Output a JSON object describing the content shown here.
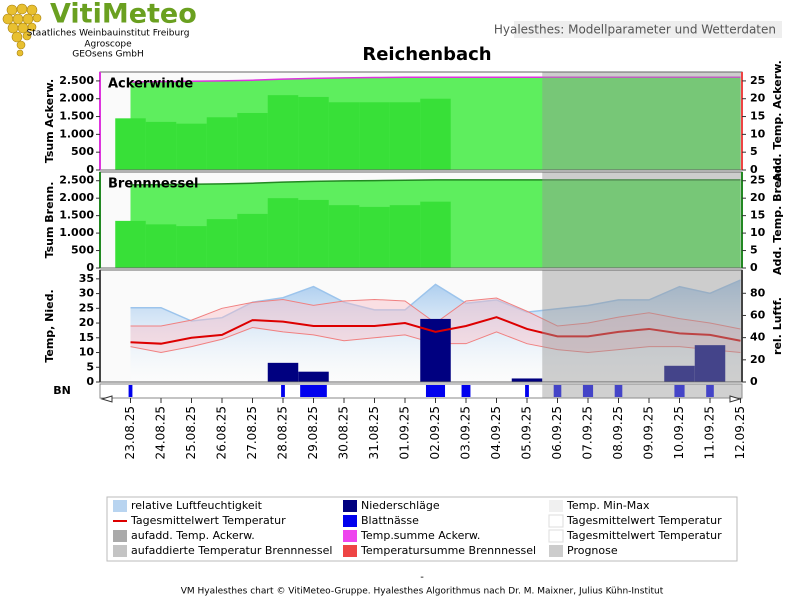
{
  "header": {
    "logo": "VitiMeteo",
    "org1": "Staatliches Weinbauinstitut Freiburg",
    "org2": "Agroscope",
    "org3": "GEOsens GmbH",
    "tab": "Hyalesthes: Modellparameter und Wetterdaten"
  },
  "title": "Reichenbach",
  "forecast_from": "06.09.25",
  "chart_data": [
    {
      "type": "combo",
      "title": "Ackerwinde",
      "ylabel": "Tsum Ackerw.",
      "y2label": "Add. Temp. Ackerw.",
      "ylim": [
        0,
        2750
      ],
      "yticks": [
        0,
        500,
        {
          "value": 1000,
          "label": "1.000"
        },
        {
          "value": 1500,
          "label": "1.500"
        },
        {
          "value": 2000,
          "label": "2.000"
        },
        {
          "value": 2500,
          "label": "2.500"
        }
      ],
      "y2lim": [
        0,
        27.5
      ],
      "y2ticks": [
        0,
        5,
        10,
        15,
        20,
        25
      ],
      "series": [
        {
          "name": "Temp.summe Ackerw.",
          "type": "area",
          "color": "#dd33dd",
          "fill": "#5eee5e",
          "values": [
            2470,
            2480,
            2490,
            2500,
            2520,
            2550,
            2570,
            2585,
            2595,
            2600,
            2605,
            2605,
            2605,
            2605,
            2605,
            2605,
            2605,
            2605,
            2605,
            2605,
            2605
          ]
        },
        {
          "name": "aufadd. Temp. Ackerw.",
          "type": "bar",
          "axis": "y2",
          "color": "#38e038",
          "values": [
            14.5,
            13.5,
            13,
            14.8,
            16,
            21,
            20.5,
            19,
            19,
            19,
            20,
            null,
            null,
            null,
            null,
            null,
            null,
            null,
            null,
            null,
            null
          ]
        }
      ]
    },
    {
      "type": "combo",
      "title": "Brennnessel",
      "ylabel": "Tsum Brenn.",
      "y2label": "Add. Temp. Brenn",
      "ylim": [
        0,
        2750
      ],
      "yticks": [
        0,
        500,
        {
          "value": 1000,
          "label": "1.000"
        },
        {
          "value": 1500,
          "label": "1.500"
        },
        {
          "value": 2000,
          "label": "2.000"
        },
        {
          "value": 2500,
          "label": "2.500"
        }
      ],
      "y2lim": [
        0,
        27.5
      ],
      "y2ticks": [
        0,
        5,
        10,
        15,
        20,
        25
      ],
      "series": [
        {
          "name": "Temperatursumme Brennnessel",
          "type": "area",
          "color": "#228822",
          "fill": "#5eee5e",
          "values": [
            2380,
            2390,
            2400,
            2410,
            2430,
            2460,
            2480,
            2495,
            2505,
            2515,
            2525,
            2525,
            2525,
            2525,
            2525,
            2525,
            2525,
            2525,
            2525,
            2525,
            2525
          ]
        },
        {
          "name": "aufaddierte Temperatur Brennnessel",
          "type": "bar",
          "axis": "y2",
          "color": "#38e038",
          "values": [
            13.5,
            12.5,
            12,
            14,
            15.5,
            20,
            19.5,
            18,
            17.5,
            18,
            19,
            null,
            null,
            null,
            null,
            null,
            null,
            null,
            null,
            null,
            null
          ]
        }
      ]
    },
    {
      "type": "combo",
      "ylabel": "Temp, Nied.",
      "y2label": "rel. Luftf.",
      "ylim": [
        0,
        38
      ],
      "yticks": [
        0,
        5,
        10,
        15,
        20,
        25,
        30,
        35
      ],
      "y2lim": [
        0,
        101
      ],
      "y2ticks": [
        0,
        20,
        40,
        60,
        80
      ],
      "series": [
        {
          "name": "relative Luftfeuchtigkeit",
          "type": "area",
          "axis": "y2",
          "color": "#9cc4ec",
          "fill": "url(#hum)",
          "values": [
            67,
            67,
            55,
            58,
            72,
            76,
            86,
            72,
            65,
            65,
            88,
            71,
            74,
            63,
            66,
            69,
            74,
            74,
            86,
            80,
            92
          ]
        },
        {
          "name": "Temp. Min-Max",
          "type": "band",
          "color": "#f08080",
          "fill": "rgba(250,190,200,0.45)",
          "high": [
            19,
            19,
            21,
            25,
            27,
            28,
            26,
            27.5,
            28,
            27.5,
            20,
            27.5,
            28.5,
            24,
            19,
            20,
            22,
            23.5,
            21.5,
            20,
            18
          ],
          "low": [
            12,
            10,
            12,
            14.5,
            18.5,
            17,
            16,
            14,
            15,
            16,
            13,
            13,
            17,
            13,
            11,
            10,
            11,
            12,
            12,
            11,
            10
          ]
        },
        {
          "name": "Niederschläge",
          "type": "bar",
          "color": "#000080",
          "values": [
            0,
            0,
            0,
            0,
            0,
            6.5,
            3.5,
            0,
            0,
            0,
            21.4,
            0,
            0,
            1.2,
            0,
            0,
            0,
            0,
            5.5,
            12.5,
            0
          ]
        },
        {
          "name": "Tagesmittelwert Temperatur",
          "type": "line",
          "color": "#dd0000",
          "values": [
            13.5,
            13,
            15,
            16,
            21,
            20.5,
            19,
            19,
            19,
            20,
            17,
            19,
            22,
            18,
            15.5,
            15.5,
            17,
            18,
            16.5,
            16,
            14
          ]
        }
      ]
    },
    {
      "type": "strip",
      "ylabel": "BN",
      "max": 24,
      "categories": [
        "23.08.25",
        "24.08.25",
        "25.08.25",
        "26.08.25",
        "27.08.25",
        "28.08.25",
        "29.08.25",
        "30.08.25",
        "31.08.25",
        "01.09.25",
        "02.09.25",
        "03.09.25",
        "04.09.25",
        "05.09.25",
        "06.09.25",
        "07.09.25",
        "08.09.25",
        "09.09.25",
        "10.09.25",
        "11.09.25",
        "12.09.25"
      ],
      "series": [
        {
          "name": "Blattnässe",
          "color": "#0000ee",
          "values": [
            3,
            0,
            0,
            0,
            0,
            3,
            21,
            0,
            0,
            0,
            15,
            7,
            0,
            3,
            6,
            8,
            6,
            0,
            8,
            6,
            0
          ]
        }
      ]
    }
  ],
  "legend": [
    {
      "name": "relative Luftfeuchtigkeit",
      "color": "#b8d4f0",
      "symbol": "box"
    },
    {
      "name": "Tagesmittelwert Temperatur",
      "color": "#dd0000",
      "symbol": "line"
    },
    {
      "name": "aufadd. Temp. Ackerw.",
      "color": "#aaaaaa",
      "symbol": "box"
    },
    {
      "name": "aufaddierte Temperatur Brennnessel",
      "color": "#c4c4c4",
      "symbol": "box"
    },
    {
      "name": "Niederschläge",
      "color": "#000080",
      "symbol": "box"
    },
    {
      "name": "Blattnässe",
      "color": "#0000ee",
      "symbol": "box"
    },
    {
      "name": "Temp.summe Ackerw.",
      "color": "#ee44ee",
      "symbol": "box"
    },
    {
      "name": "Temperatursumme Brennnessel",
      "color": "#ee4444",
      "symbol": "box"
    },
    {
      "name": "Temp. Min-Max",
      "color": "#f0f0f0",
      "symbol": "box"
    },
    {
      "name": "Tagesmittelwert Temperatur",
      "color": "#ffffff",
      "symbol": "box"
    },
    {
      "name": "Tagesmittelwert Temperatur",
      "color": "#ffffff",
      "symbol": "box"
    },
    {
      "name": "Prognose",
      "color": "#cccccc",
      "symbol": "box"
    }
  ],
  "footer": {
    "dash": "-",
    "text": "VM Hyalesthes chart © VitiMeteo-Gruppe. Hyalesthes Algorithmus nach Dr. M. Maixner, Julius Kühn-Institut"
  }
}
